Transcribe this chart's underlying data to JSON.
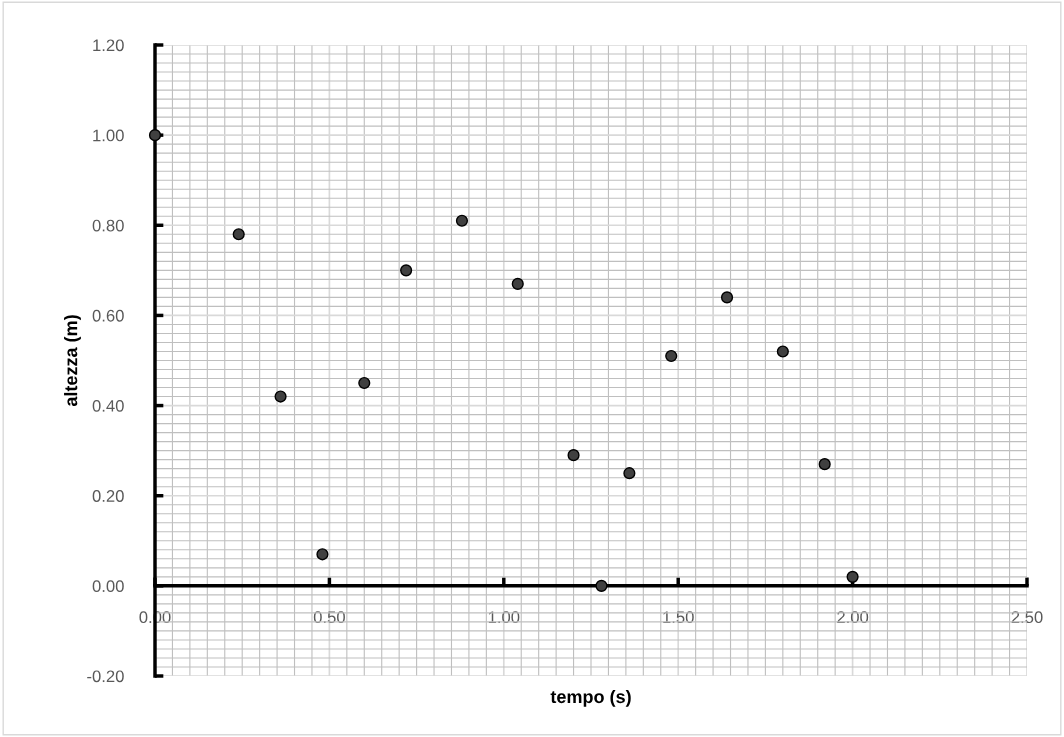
{
  "chart_data": {
    "type": "scatter",
    "xlabel": "tempo (s)",
    "ylabel": "altezza (m)",
    "x": [
      0.0,
      0.24,
      0.36,
      0.48,
      0.6,
      0.72,
      0.88,
      1.04,
      1.2,
      1.28,
      1.36,
      1.48,
      1.64,
      1.8,
      1.92,
      2.0
    ],
    "series": [
      {
        "color": "#404040",
        "values": [
          1.0,
          0.78,
          0.42,
          0.07,
          0.45,
          0.7,
          0.81,
          0.67,
          0.29,
          0.0,
          0.25,
          0.51,
          0.64,
          0.52,
          0.27,
          0.02
        ]
      }
    ],
    "xlim": [
      0,
      2.5
    ],
    "ylim": [
      -0.2,
      1.2
    ],
    "xticks": [
      {
        "value": 0,
        "label": "0.00"
      },
      {
        "value": 0.5,
        "label": "0.50"
      },
      {
        "value": 1,
        "label": "1.00"
      },
      {
        "value": 1.5,
        "label": "1.50"
      },
      {
        "value": 2,
        "label": "2.00"
      },
      {
        "value": 2.5,
        "label": "2.50"
      }
    ],
    "yticks": [
      {
        "value": -0.2,
        "label": "-0.20"
      },
      {
        "value": 0,
        "label": "0.00"
      },
      {
        "value": 0.2,
        "label": "0.20"
      },
      {
        "value": 0.4,
        "label": "0.40"
      },
      {
        "value": 0.6,
        "label": "0.60"
      },
      {
        "value": 0.8,
        "label": "0.80"
      },
      {
        "value": 1.0,
        "label": "1.00"
      },
      {
        "value": 1.2,
        "label": "1.20"
      }
    ],
    "grid": true,
    "marker": "circle",
    "legend": false
  }
}
